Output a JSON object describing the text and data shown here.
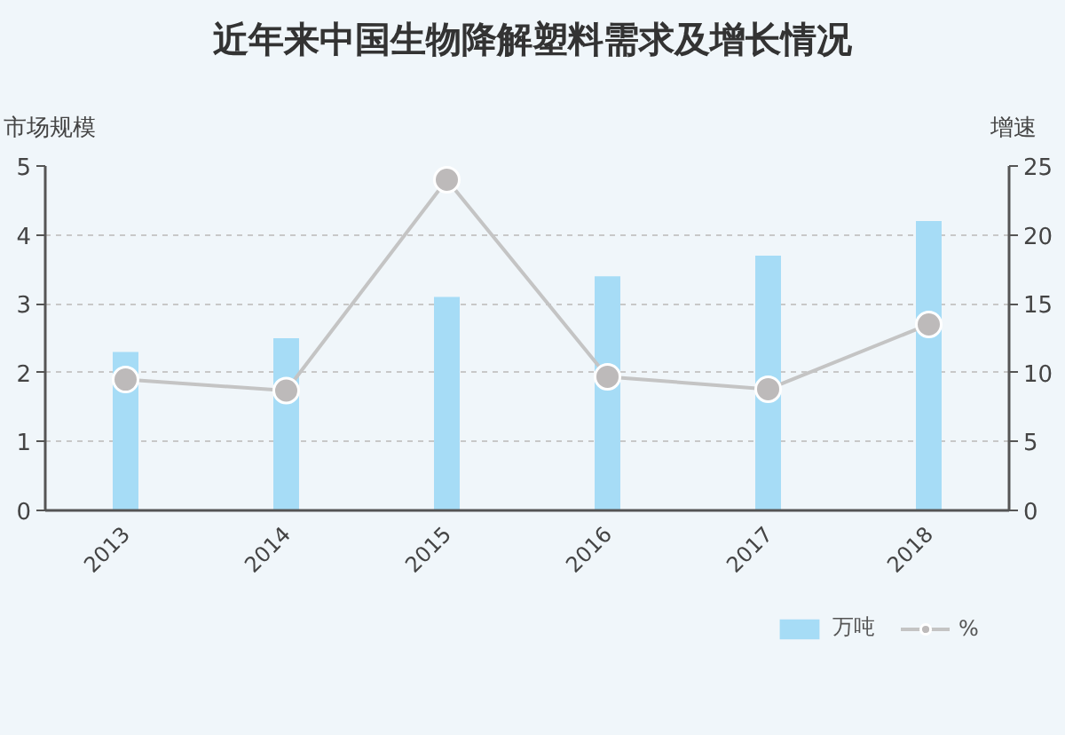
{
  "chart_data": {
    "type": "bar",
    "title": "近年来中国生物降解塑料需求及增长情况",
    "ylabel": "市场规模",
    "y2label": "增速",
    "categories": [
      "2013",
      "2014",
      "2015",
      "2016",
      "2017",
      "2018"
    ],
    "series": [
      {
        "name": "万吨",
        "color": "#a6dcf6",
        "values": [
          2.3,
          2.5,
          3.1,
          3.4,
          3.7,
          4.2
        ]
      },
      {
        "name": "%",
        "type": "line",
        "axis": "y2",
        "color": "#c4c4c4",
        "values": [
          9.5,
          8.7,
          24,
          9.7,
          8.8,
          13.5
        ]
      }
    ],
    "ylim": [
      0,
      5
    ],
    "yticks": [
      0,
      1,
      2,
      3,
      4,
      5
    ],
    "y2lim": [
      0,
      25
    ],
    "y2ticks": [
      0,
      5,
      10,
      15,
      20,
      25
    ],
    "grid": "y",
    "legend": "bottom right",
    "marker": "circle"
  }
}
